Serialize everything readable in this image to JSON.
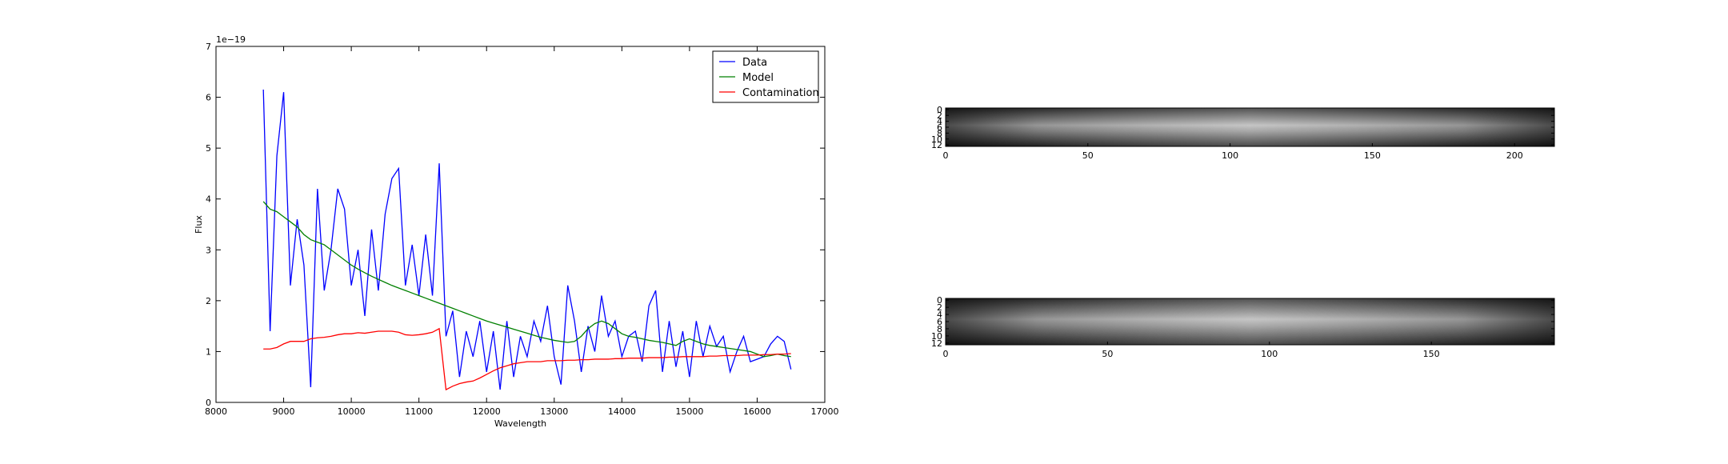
{
  "chart_data": [
    {
      "type": "line",
      "xlabel": "Wavelength",
      "ylabel": "Flux",
      "y_offset_label": "1e−19",
      "xlim": [
        8000,
        17000
      ],
      "ylim": [
        0,
        7
      ],
      "xticks": [
        8000,
        9000,
        10000,
        11000,
        12000,
        13000,
        14000,
        15000,
        16000,
        17000
      ],
      "yticks": [
        0,
        1,
        2,
        3,
        4,
        5,
        6,
        7
      ],
      "legend": "upper right",
      "x": [
        8700,
        8800,
        8900,
        9000,
        9100,
        9200,
        9300,
        9400,
        9500,
        9600,
        9700,
        9800,
        9900,
        10000,
        10100,
        10200,
        10300,
        10400,
        10500,
        10600,
        10700,
        10800,
        10900,
        11000,
        11100,
        11200,
        11300,
        11400,
        11500,
        11600,
        11700,
        11800,
        11900,
        12000,
        12100,
        12200,
        12300,
        12400,
        12500,
        12600,
        12700,
        12800,
        12900,
        13000,
        13100,
        13200,
        13300,
        13400,
        13500,
        13600,
        13700,
        13800,
        13900,
        14000,
        14100,
        14200,
        14300,
        14400,
        14500,
        14600,
        14700,
        14800,
        14900,
        15000,
        15100,
        15200,
        15300,
        15400,
        15500,
        15600,
        15700,
        15800,
        15900,
        16000,
        16100,
        16200,
        16300,
        16400,
        16500
      ],
      "series": [
        {
          "name": "Data",
          "color": "#0000ff",
          "values": [
            6.15,
            1.4,
            4.85,
            6.1,
            2.3,
            3.6,
            2.7,
            0.3,
            4.2,
            2.2,
            3.0,
            4.2,
            3.8,
            2.3,
            3.0,
            1.7,
            3.4,
            2.2,
            3.7,
            4.4,
            4.6,
            2.3,
            3.1,
            2.1,
            3.3,
            2.1,
            4.7,
            1.3,
            1.8,
            0.5,
            1.4,
            0.9,
            1.6,
            0.6,
            1.4,
            0.25,
            1.6,
            0.5,
            1.3,
            0.9,
            1.6,
            1.2,
            1.9,
            0.9,
            0.35,
            2.3,
            1.6,
            0.6,
            1.5,
            1.0,
            2.1,
            1.3,
            1.6,
            0.9,
            1.3,
            1.4,
            0.8,
            1.9,
            2.2,
            0.6,
            1.6,
            0.7,
            1.4,
            0.5,
            1.6,
            0.9,
            1.5,
            1.1,
            1.3,
            0.6,
            1.0,
            1.3,
            0.8,
            0.85,
            0.9,
            1.15,
            1.3,
            1.2,
            0.65
          ]
        },
        {
          "name": "Model",
          "color": "#008000",
          "values": [
            3.95,
            3.8,
            3.75,
            3.65,
            3.55,
            3.45,
            3.3,
            3.2,
            3.15,
            3.1,
            3.0,
            2.9,
            2.8,
            2.7,
            2.62,
            2.55,
            2.48,
            2.42,
            2.36,
            2.3,
            2.25,
            2.2,
            2.15,
            2.1,
            2.05,
            2.0,
            1.95,
            1.9,
            1.85,
            1.8,
            1.75,
            1.7,
            1.65,
            1.6,
            1.56,
            1.52,
            1.48,
            1.44,
            1.4,
            1.36,
            1.32,
            1.28,
            1.25,
            1.22,
            1.2,
            1.18,
            1.2,
            1.3,
            1.45,
            1.55,
            1.6,
            1.55,
            1.45,
            1.35,
            1.3,
            1.28,
            1.25,
            1.22,
            1.2,
            1.18,
            1.15,
            1.12,
            1.2,
            1.25,
            1.2,
            1.15,
            1.12,
            1.1,
            1.08,
            1.06,
            1.04,
            1.02,
            1.0,
            0.95,
            0.9,
            0.92,
            0.95,
            0.92,
            0.9
          ]
        },
        {
          "name": "Contamination",
          "color": "#ff0000",
          "values": [
            1.05,
            1.05,
            1.08,
            1.15,
            1.2,
            1.2,
            1.2,
            1.25,
            1.27,
            1.28,
            1.3,
            1.33,
            1.35,
            1.35,
            1.37,
            1.36,
            1.38,
            1.4,
            1.4,
            1.4,
            1.38,
            1.33,
            1.32,
            1.33,
            1.35,
            1.38,
            1.45,
            0.25,
            0.32,
            0.37,
            0.4,
            0.42,
            0.48,
            0.55,
            0.62,
            0.68,
            0.72,
            0.76,
            0.78,
            0.8,
            0.8,
            0.8,
            0.82,
            0.82,
            0.82,
            0.83,
            0.83,
            0.84,
            0.84,
            0.85,
            0.85,
            0.85,
            0.86,
            0.86,
            0.87,
            0.87,
            0.87,
            0.88,
            0.88,
            0.88,
            0.89,
            0.89,
            0.9,
            0.9,
            0.9,
            0.9,
            0.91,
            0.91,
            0.92,
            0.92,
            0.92,
            0.93,
            0.93,
            0.93,
            0.94,
            0.94,
            0.95,
            0.95,
            0.96
          ]
        }
      ]
    },
    {
      "type": "image",
      "xlim": [
        0,
        214
      ],
      "ylim": [
        -0.5,
        12.5
      ],
      "xticks": [
        0,
        50,
        100,
        150,
        200
      ],
      "yticks": [
        0,
        2,
        4,
        6,
        8,
        10,
        12
      ]
    },
    {
      "type": "image",
      "xlim": [
        0,
        188
      ],
      "ylim": [
        -0.5,
        12.5
      ],
      "xticks": [
        0,
        50,
        100,
        150
      ],
      "yticks": [
        0,
        2,
        4,
        6,
        8,
        10,
        12
      ]
    }
  ]
}
